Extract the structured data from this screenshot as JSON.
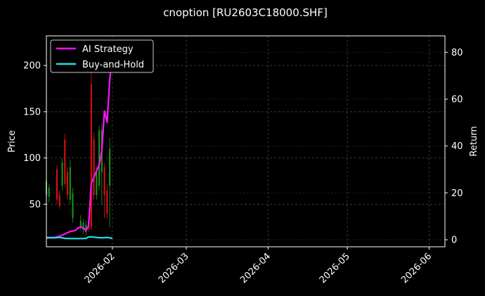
{
  "chart_data": {
    "type": "line",
    "title": "cnoption [RU2603C18000.SHF]",
    "ylabel": "Price",
    "ylabel_right": "Return",
    "xlim": [
      "2026-01-07",
      "2026-06-07"
    ],
    "ylim": [
      4,
      232
    ],
    "ylim_right": [
      -3,
      87
    ],
    "x_ticks": [
      "2026-02-01",
      "2026-03-01",
      "2026-04-01",
      "2026-05-01",
      "2026-06-01"
    ],
    "x_tick_labels": [
      "2026-02",
      "2026-03",
      "2026-04",
      "2026-05",
      "2026-06"
    ],
    "y_ticks": [
      50,
      100,
      150,
      200
    ],
    "y_ticks_right": [
      0,
      20,
      40,
      60,
      80
    ],
    "grid": true,
    "legend_placement": "top-left",
    "colors": {
      "background": "#000000",
      "up_candle": "#1a9a1a",
      "down_candle": "#e01010",
      "grid": "#5a5a5a",
      "ai_strategy": "#ff10ff",
      "buy_and_hold": "#20e0e8"
    },
    "candles": [
      {
        "date": "2026-01-07",
        "open": 60,
        "close": 75,
        "high": 80,
        "low": 55
      },
      {
        "date": "2026-01-08",
        "open": 58,
        "close": 68,
        "high": 72,
        "low": 52
      },
      {
        "date": "2026-01-11",
        "open": 88,
        "close": 55,
        "high": 92,
        "low": 50
      },
      {
        "date": "2026-01-12",
        "open": 60,
        "close": 48,
        "high": 65,
        "low": 45
      },
      {
        "date": "2026-01-13",
        "open": 70,
        "close": 95,
        "high": 100,
        "low": 65
      },
      {
        "date": "2026-01-14",
        "open": 120,
        "close": 72,
        "high": 126,
        "low": 68
      },
      {
        "date": "2026-01-15",
        "open": 85,
        "close": 60,
        "high": 90,
        "low": 55
      },
      {
        "date": "2026-01-16",
        "open": 55,
        "close": 90,
        "high": 98,
        "low": 50
      },
      {
        "date": "2026-01-17",
        "open": 35,
        "close": 62,
        "high": 68,
        "low": 30
      },
      {
        "date": "2026-01-20",
        "open": 25,
        "close": 32,
        "high": 38,
        "low": 22
      },
      {
        "date": "2026-01-21",
        "open": 22,
        "close": 30,
        "high": 34,
        "low": 18
      },
      {
        "date": "2026-01-22",
        "open": 20,
        "close": 28,
        "high": 32,
        "low": 16
      },
      {
        "date": "2026-01-23",
        "open": 34,
        "close": 24,
        "high": 38,
        "low": 20
      },
      {
        "date": "2026-01-24",
        "open": 180,
        "close": 25,
        "high": 192,
        "low": 22
      },
      {
        "date": "2026-01-25",
        "open": 120,
        "close": 60,
        "high": 128,
        "low": 55
      },
      {
        "date": "2026-01-26",
        "open": 60,
        "close": 85,
        "high": 90,
        "low": 55
      },
      {
        "date": "2026-01-27",
        "open": 70,
        "close": 130,
        "high": 135,
        "low": 65
      },
      {
        "date": "2026-01-28",
        "open": 85,
        "close": 130,
        "high": 137,
        "low": 50
      },
      {
        "date": "2026-01-29",
        "open": 90,
        "close": 60,
        "high": 95,
        "low": 35
      },
      {
        "date": "2026-01-30",
        "open": 65,
        "close": 40,
        "high": 72,
        "low": 35
      },
      {
        "date": "2026-01-31",
        "open": 70,
        "close": 110,
        "high": 122,
        "low": 25
      }
    ],
    "series": [
      {
        "name": "AI Strategy",
        "color": "#ff10ff",
        "points": [
          [
            "2026-01-07",
            1
          ],
          [
            "2026-01-10",
            1
          ],
          [
            "2026-01-12",
            1.5
          ],
          [
            "2026-01-14",
            2.5
          ],
          [
            "2026-01-16",
            3.5
          ],
          [
            "2026-01-18",
            4
          ],
          [
            "2026-01-19",
            5
          ],
          [
            "2026-01-20",
            5.5
          ],
          [
            "2026-01-21",
            5
          ],
          [
            "2026-01-22",
            4
          ],
          [
            "2026-01-23",
            6
          ],
          [
            "2026-01-24",
            24
          ],
          [
            "2026-01-27",
            32
          ],
          [
            "2026-01-28",
            38
          ],
          [
            "2026-01-29",
            55
          ],
          [
            "2026-01-30",
            50
          ],
          [
            "2026-01-31",
            68
          ],
          [
            "2026-02-01",
            80
          ]
        ]
      },
      {
        "name": "Buy-and-Hold",
        "color": "#20e0e8",
        "points": [
          [
            "2026-01-07",
            0.8
          ],
          [
            "2026-01-10",
            0.8
          ],
          [
            "2026-01-12",
            1
          ],
          [
            "2026-01-14",
            0.6
          ],
          [
            "2026-01-16",
            0.5
          ],
          [
            "2026-01-18",
            0.5
          ],
          [
            "2026-01-20",
            0.5
          ],
          [
            "2026-01-22",
            0.6
          ],
          [
            "2026-01-23",
            1.2
          ],
          [
            "2026-01-24",
            1.2
          ],
          [
            "2026-01-26",
            1
          ],
          [
            "2026-01-28",
            0.8
          ],
          [
            "2026-01-30",
            1
          ],
          [
            "2026-02-01",
            0.6
          ]
        ]
      }
    ]
  }
}
